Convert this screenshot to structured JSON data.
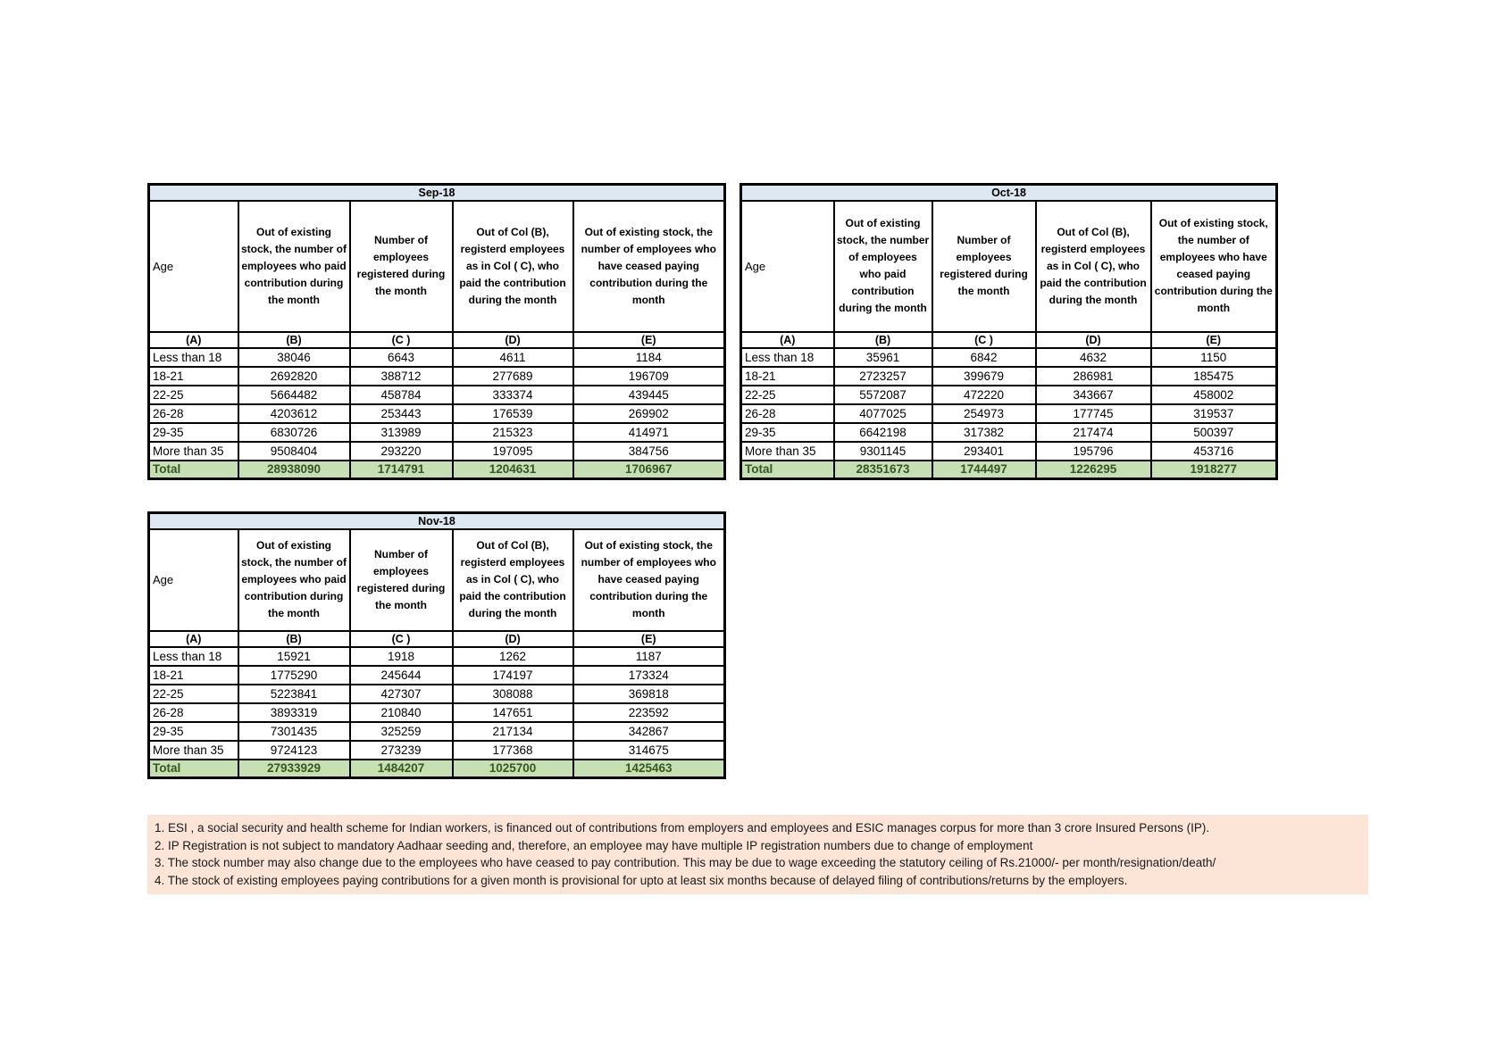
{
  "shared": {
    "age_label": "Age",
    "col_b": "Out of existing stock, the number of employees who paid contribution during the month",
    "col_c": "Number of employees registered during the month",
    "col_d": "Out of Col (B), registerd employees as in Col ( C), who paid the contribution during the month",
    "col_e": "Out of existing stock, the number of employees who have ceased paying contribution during the month",
    "letters": [
      "(A)",
      "(B)",
      "(C )",
      "(D)",
      "(E)"
    ]
  },
  "tables": [
    {
      "title": "Sep-18",
      "rows": [
        [
          "Less than 18",
          "38046",
          "6643",
          "4611",
          "1184"
        ],
        [
          "18-21",
          "2692820",
          "388712",
          "277689",
          "196709"
        ],
        [
          "22-25",
          "5664482",
          "458784",
          "333374",
          "439445"
        ],
        [
          "26-28",
          "4203612",
          "253443",
          "176539",
          "269902"
        ],
        [
          "29-35",
          "6830726",
          "313989",
          "215323",
          "414971"
        ],
        [
          "More than 35",
          "9508404",
          "293220",
          "197095",
          "384756"
        ],
        [
          "Total",
          "28938090",
          "1714791",
          "1204631",
          "1706967"
        ]
      ]
    },
    {
      "title": "Oct-18",
      "rows": [
        [
          "Less than 18",
          "35961",
          "6842",
          "4632",
          "1150"
        ],
        [
          "18-21",
          "2723257",
          "399679",
          "286981",
          "185475"
        ],
        [
          "22-25",
          "5572087",
          "472220",
          "343667",
          "458002"
        ],
        [
          "26-28",
          "4077025",
          "254973",
          "177745",
          "319537"
        ],
        [
          "29-35",
          "6642198",
          "317382",
          "217474",
          "500397"
        ],
        [
          "More than 35",
          "9301145",
          "293401",
          "195796",
          "453716"
        ],
        [
          "Total",
          "28351673",
          "1744497",
          "1226295",
          "1918277"
        ]
      ]
    },
    {
      "title": "Nov-18",
      "rows": [
        [
          "Less than 18",
          "15921",
          "1918",
          "1262",
          "1187"
        ],
        [
          "18-21",
          "1775290",
          "245644",
          "174197",
          "173324"
        ],
        [
          "22-25",
          "5223841",
          "427307",
          "308088",
          "369818"
        ],
        [
          "26-28",
          "3893319",
          "210840",
          "147651",
          "223592"
        ],
        [
          "29-35",
          "7301435",
          "325259",
          "217134",
          "342867"
        ],
        [
          "More than 35",
          "9724123",
          "273239",
          "177368",
          "314675"
        ],
        [
          "Total",
          "27933929",
          "1484207",
          "1025700",
          "1425463"
        ]
      ]
    }
  ],
  "footnotes": [
    "1. ESI , a social security and health scheme for Indian workers, is financed out of contributions from employers and employees and ESIC manages corpus for more than 3 crore Insured Persons (IP).",
    "2. IP Registration is not subject to mandatory Aadhaar seeding and, therefore, an employee may have multiple IP registration numbers due to change of employment",
    "3. The stock number may also change due to the employees who have ceased to pay contribution. This may  be due to wage exceeding the statutory ceiling of  Rs.21000/- per month/resignation/death/",
    "4. The stock of existing employees paying contributions for a given month is provisional for upto at least six months because of delayed filing of contributions/returns by the employers."
  ],
  "colors": {
    "month_header_bg": "#dde8f3",
    "total_row_bg": "#c6e0b4",
    "total_row_text": "#375623",
    "footnote_bg": "#fce4d6",
    "border": "#000000"
  }
}
